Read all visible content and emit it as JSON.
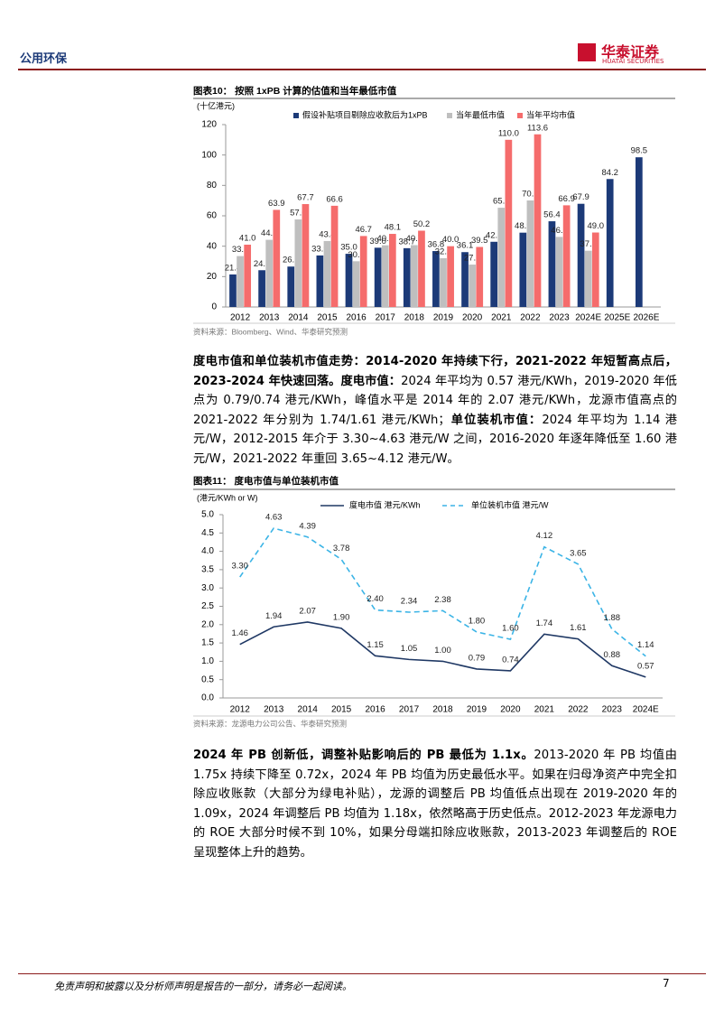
{
  "header": {
    "section": "公用环保",
    "logo_cn": "华泰证券",
    "logo_en": "HUATAI SECURITIES"
  },
  "chart_data": [
    {
      "type": "bar",
      "title": "图表10：  按照 1xPB 计算的估值和当年最低市值",
      "y_label": "(十亿港元)",
      "source": "资料来源：Bloomberg、Wind、华泰研究预测",
      "categories": [
        "2012",
        "2013",
        "2014",
        "2015",
        "2016",
        "2017",
        "2018",
        "2019",
        "2020",
        "2021",
        "2022",
        "2023",
        "2024E",
        "2025E",
        "2026E"
      ],
      "series": [
        {
          "name": "假设补贴项目剔除应收款后为1xPB",
          "color": "#1c3a78",
          "values": [
            21.4,
            24.2,
            26.6,
            33.9,
            35.0,
            39.0,
            38.7,
            36.8,
            36.1,
            42.9,
            48.9,
            56.4,
            67.9,
            84.2,
            98.5
          ],
          "value_labels": [
            "21.4",
            "24.2",
            "26.6",
            "33.9",
            "35.0",
            "39.0",
            "38.7",
            "36.8",
            "36.1",
            "42.9",
            "48.9",
            "56.4",
            "67.9",
            "84.2",
            "98.5"
          ]
        },
        {
          "name": "当年最低市值",
          "color": "#bfbfbf",
          "values": [
            33.5,
            44.2,
            57.6,
            43.4,
            30.1,
            40.6,
            40.7,
            32.1,
            27.9,
            65.3,
            70.1,
            46.1,
            37.0,
            null,
            null
          ],
          "value_labels": [
            "33.5",
            "44.2",
            "57.6",
            "43.4",
            "30.1",
            "40.6",
            "40.7",
            "32.1",
            "27.9",
            "65.3",
            "70.1",
            "46.1",
            "37.0",
            null,
            null
          ]
        },
        {
          "name": "当年平均市值",
          "color": "#f56c6c",
          "values": [
            41.0,
            63.9,
            67.7,
            66.6,
            46.7,
            48.1,
            50.2,
            40.0,
            39.5,
            110.0,
            113.6,
            66.9,
            49.0,
            null,
            null
          ],
          "value_labels": [
            "41.0",
            "63.9",
            "67.7",
            "66.6",
            "46.7",
            "48.1",
            "50.2",
            "40.0",
            "39.5",
            "110.0",
            "113.6",
            "66.9",
            "49.0",
            null,
            null
          ]
        }
      ],
      "ylim": [
        0,
        120
      ],
      "yticks": [
        0,
        20,
        40,
        60,
        80,
        100,
        120
      ],
      "grid": false
    },
    {
      "type": "line",
      "title": "图表11：  度电市值与单位装机市值",
      "y_label": "(港元/KWh or W)",
      "source": "资料来源：龙源电力公司公告、华泰研究预测",
      "categories": [
        "2012",
        "2013",
        "2014",
        "2015",
        "2016",
        "2017",
        "2018",
        "2019",
        "2020",
        "2021",
        "2022",
        "2023",
        "2024E"
      ],
      "series": [
        {
          "name": "度电市值 港元/KWh",
          "color": "#1f3864",
          "line_style": "solid",
          "values": [
            1.46,
            1.94,
            2.07,
            1.9,
            1.15,
            1.05,
            1.0,
            0.79,
            0.74,
            1.74,
            1.61,
            0.88,
            0.57
          ],
          "value_labels": [
            "1.46",
            "1.94",
            "2.07",
            "1.90",
            "1.15",
            "1.05",
            "1.00",
            "0.79",
            "0.74",
            "1.74",
            "1.61",
            "0.88",
            "0.57"
          ]
        },
        {
          "name": "单位装机市值 港元/W",
          "color": "#3bb4e6",
          "line_style": "dashed",
          "values": [
            3.3,
            4.63,
            4.39,
            3.78,
            2.4,
            2.34,
            2.38,
            1.8,
            1.6,
            4.12,
            3.65,
            1.88,
            1.14
          ],
          "value_labels": [
            "3.30",
            "4.63",
            "4.39",
            "3.78",
            "2.40",
            "2.34",
            "2.38",
            "1.80",
            "1.60",
            "4.12",
            "3.65",
            "1.88",
            "1.14"
          ]
        }
      ],
      "ylim": [
        0,
        5
      ],
      "yticks": [
        {
          "value": 0,
          "label": "0.0"
        },
        {
          "value": 0.5,
          "label": "0.5"
        },
        {
          "value": 1,
          "label": "1.0"
        },
        {
          "value": 1.5,
          "label": "1.5"
        },
        {
          "value": 2,
          "label": "2.0"
        },
        {
          "value": 2.5,
          "label": "2.5"
        },
        {
          "value": 3,
          "label": "3.0"
        },
        {
          "value": 3.5,
          "label": "3.5"
        },
        {
          "value": 4,
          "label": "4.0"
        },
        {
          "value": 4.5,
          "label": "4.5"
        },
        {
          "value": 5,
          "label": "5.0"
        }
      ],
      "grid": false
    }
  ],
  "paragraphs": [
    {
      "runs": [
        {
          "text": "度电市值和单位装机市值走势：2014-2020 年持续下行，2021-2022 年短暂高点后，2023-2024 年快速回落。",
          "bold": true
        },
        {
          "text": "度电市值：",
          "bold": true
        },
        {
          "text": "2024 年平均为 0.57 港元/KWh，2019-2020 年低点为 0.79/0.74 港元/KWh，峰值水平是 2014 年的 2.07 港元/KWh，龙源市值高点的 2021-2022 年分别为 1.74/1.61 港元/KWh；",
          "bold": false
        },
        {
          "text": "单位装机市值：",
          "bold": true
        },
        {
          "text": "2024 年平均为 1.14 港元/W，2012-2015 年介于 3.30~4.63 港元/W 之间，2016-2020 年逐年降低至 1.60 港元/W，2021-2022 年重回 3.65~4.12 港元/W。",
          "bold": false
        }
      ]
    },
    {
      "runs": [
        {
          "text": "2024 年 PB 创新低，调整补贴影响后的 PB 最低为 1.1x。",
          "bold": true
        },
        {
          "text": "2013-2020 年 PB 均值由 1.75x 持续下降至 0.72x，2024 年 PB 均值为历史最低水平。如果在归母净资产中完全扣除应收账款（大部分为绿电补贴），龙源的调整后 PB 均值低点出现在 2019-2020 年的 1.09x，2024 年调整后 PB 均值为 1.18x，依然略高于历史低点。2012-2023 年龙源电力的 ROE 大部分时候不到 10%，如果分母端扣除应收账款，2013-2023 年调整后的 ROE 呈现整体上升的趋势。",
          "bold": false
        }
      ]
    }
  ],
  "footer": {
    "disclaimer": "免责声明和披露以及分析师声明是报告的一部分，请务必一起阅读。",
    "page": "7"
  }
}
